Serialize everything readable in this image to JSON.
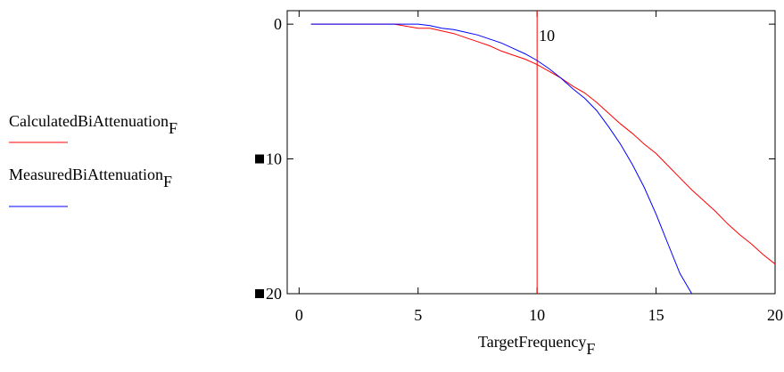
{
  "chart_data": {
    "type": "line",
    "xlabel": "TargetFrequency",
    "xlabel_sub": "F",
    "xlim": [
      -0.5,
      20
    ],
    "ylim": [
      -20,
      1
    ],
    "x_ticks": [
      0,
      5,
      10,
      15,
      20
    ],
    "y_ticks": [
      {
        "value": 0,
        "label": "0"
      },
      {
        "value": -10,
        "label": "10"
      },
      {
        "value": -20,
        "label": "20"
      }
    ],
    "marker": {
      "x": 10,
      "label": "10",
      "color": "#ff0000"
    },
    "legend_position": "left",
    "series": [
      {
        "name": "CalculatedBiAttenuation",
        "name_sub": "F",
        "color": "#ff0000",
        "x": [
          0.5,
          4,
          5,
          5.5,
          6,
          6.5,
          7,
          7.5,
          8,
          8.5,
          9,
          9.5,
          10,
          10.5,
          11,
          11.5,
          12,
          12.5,
          13,
          13.5,
          14,
          14.5,
          15,
          15.5,
          16,
          16.5,
          17,
          17.5,
          18,
          18.5,
          19,
          19.5,
          20
        ],
        "values": [
          0,
          0,
          -0.3,
          -0.3,
          -0.5,
          -0.7,
          -1.0,
          -1.3,
          -1.6,
          -2.0,
          -2.3,
          -2.6,
          -3.0,
          -3.5,
          -4.0,
          -4.6,
          -5.1,
          -5.8,
          -6.6,
          -7.4,
          -8.1,
          -8.9,
          -9.6,
          -10.5,
          -11.4,
          -12.3,
          -13.1,
          -13.9,
          -14.8,
          -15.6,
          -16.3,
          -17.1,
          -17.8
        ]
      },
      {
        "name": "MeasuredBiAttenuation",
        "name_sub": "F",
        "color": "#0000ff",
        "x": [
          0.5,
          4.5,
          5,
          5.5,
          6,
          6.5,
          7,
          7.5,
          8,
          8.5,
          9,
          9.5,
          10,
          10.5,
          11,
          11.5,
          12,
          12.5,
          13,
          13.5,
          14,
          14.5,
          15,
          15.5,
          16,
          16.5,
          16.65
        ],
        "values": [
          0,
          0,
          0,
          -0.1,
          -0.3,
          -0.4,
          -0.6,
          -0.8,
          -1.1,
          -1.4,
          -1.8,
          -2.2,
          -2.7,
          -3.3,
          -4.0,
          -4.8,
          -5.5,
          -6.4,
          -7.6,
          -8.9,
          -10.4,
          -12.1,
          -14.1,
          -16.3,
          -18.5,
          -20.0,
          -20.5
        ]
      }
    ]
  }
}
